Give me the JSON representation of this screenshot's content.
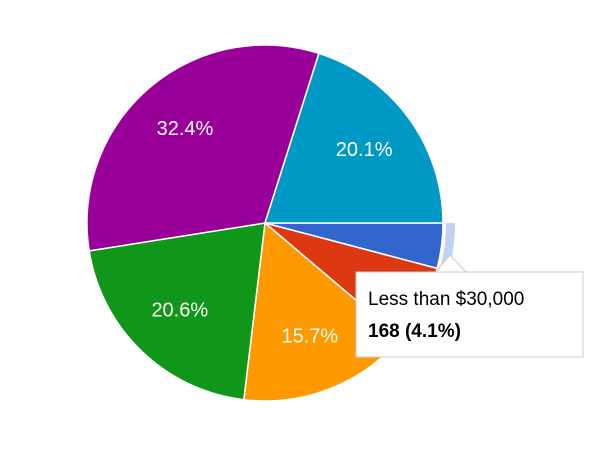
{
  "chart_data": {
    "type": "pie",
    "categories": [
      "Less than $30,000",
      null,
      null,
      null,
      null,
      null
    ],
    "values": [
      4.1,
      7.1,
      15.7,
      20.6,
      32.4,
      20.1
    ],
    "value_labels": [
      null,
      null,
      "15.7%",
      "20.6%",
      "32.4%",
      "20.1%"
    ],
    "colors": [
      "#3366cc",
      "#dc3912",
      "#ff9900",
      "#109618",
      "#990099",
      "#0099c6"
    ],
    "tooltip": {
      "category": 0,
      "text": "168 (4.1%)"
    }
  }
}
